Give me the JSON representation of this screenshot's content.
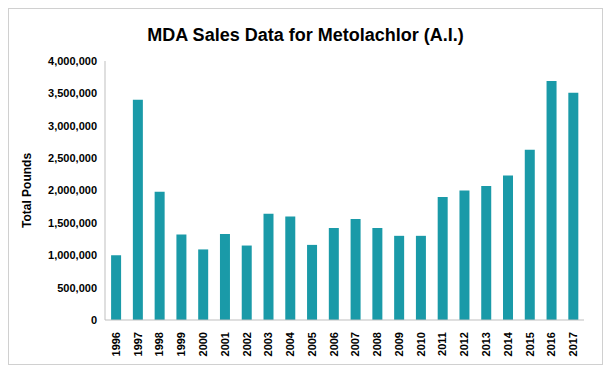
{
  "chart_data": {
    "type": "bar",
    "title": "MDA Sales Data for Metolachlor (A.I.)",
    "y_label": "Total Pounds",
    "categories": [
      "1996",
      "1997",
      "1998",
      "1999",
      "2000",
      "2001",
      "2002",
      "2003",
      "2004",
      "2005",
      "2006",
      "2007",
      "2008",
      "2009",
      "2010",
      "2011",
      "2012",
      "2013",
      "2014",
      "2015",
      "2016",
      "2017"
    ],
    "values": [
      1000000,
      3400000,
      1980000,
      1320000,
      1090000,
      1330000,
      1150000,
      1640000,
      1600000,
      1160000,
      1420000,
      1560000,
      1420000,
      1300000,
      1300000,
      1900000,
      2000000,
      2070000,
      2230000,
      2630000,
      3690000,
      3510000
    ],
    "color": "#1a9aa8",
    "ylim": [
      0,
      4000000
    ],
    "yticks": [
      0,
      {
        "value": 500000,
        "label": "500,000"
      },
      {
        "value": 1000000,
        "label": "1,000,000"
      },
      {
        "value": 1500000,
        "label": "1,500,000"
      },
      {
        "value": 2000000,
        "label": "2,000,000"
      },
      {
        "value": 2500000,
        "label": "2,500,000"
      },
      {
        "value": 3000000,
        "label": "3,000,000"
      },
      {
        "value": 3500000,
        "label": "3,500,000"
      },
      {
        "value": 4000000,
        "label": "4,000,000"
      }
    ],
    "grid": false
  }
}
